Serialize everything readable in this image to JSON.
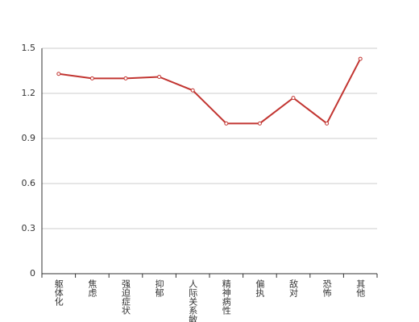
{
  "chart_data": {
    "type": "line",
    "categories": [
      "躯体化",
      "焦虑",
      "强迫症状",
      "抑郁",
      "人际关系敏感",
      "精神病性",
      "偏执",
      "敌对",
      "恐怖",
      "其他"
    ],
    "values": [
      1.33,
      1.3,
      1.3,
      1.31,
      1.22,
      1.0,
      1.0,
      1.17,
      1.0,
      1.43
    ],
    "color": "#c23531",
    "ylim": [
      0,
      1.5
    ],
    "yticks": [
      0,
      0.3,
      0.6,
      0.9,
      1.2,
      1.5
    ],
    "grid": true
  }
}
